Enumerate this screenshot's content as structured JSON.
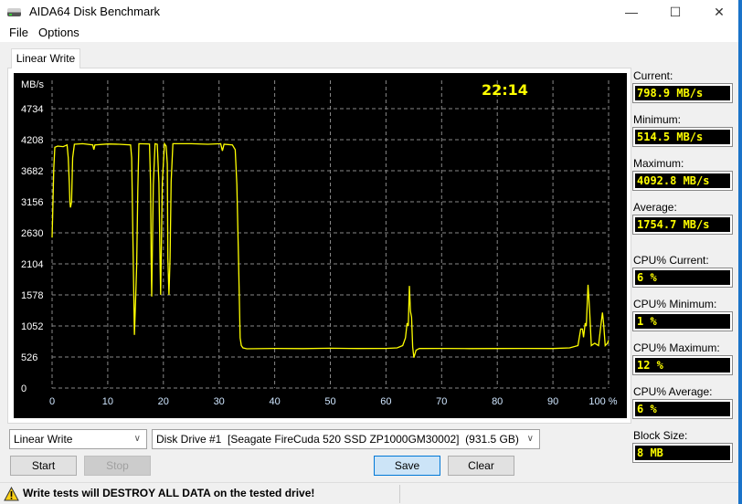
{
  "window": {
    "title": "AIDA64 Disk Benchmark",
    "minimize": "—",
    "maximize": "☐",
    "close": "✕"
  },
  "menu": [
    "File",
    "Options"
  ],
  "tab": "Linear Write",
  "stats": [
    {
      "label": "Current:",
      "value": "798.9 MB/s"
    },
    {
      "label": "Minimum:",
      "value": "514.5 MB/s"
    },
    {
      "label": "Maximum:",
      "value": "4092.8 MB/s"
    },
    {
      "label": "Average:",
      "value": "1754.7 MB/s"
    },
    {
      "label": "CPU% Current:",
      "value": "6 %"
    },
    {
      "label": "CPU% Minimum:",
      "value": "1 %"
    },
    {
      "label": "CPU% Maximum:",
      "value": "12 %"
    },
    {
      "label": "CPU% Average:",
      "value": "6 %"
    },
    {
      "label": "Block Size:",
      "value": "8 MB"
    }
  ],
  "controls": {
    "test_select": "Linear Write",
    "drive_select": "Disk Drive #1  [Seagate FireCuda 520 SSD ZP1000GM30002]  (931.5 GB)",
    "start": "Start",
    "stop": "Stop",
    "save": "Save",
    "clear": "Clear"
  },
  "status": {
    "warning": "Write tests will DESTROY ALL DATA on the tested drive!",
    "icon": "warning-icon"
  },
  "chart_data": {
    "type": "line",
    "elapsed": "22:14",
    "ylabel": "MB/s",
    "yticks": [
      0,
      526,
      1052,
      1578,
      2104,
      2630,
      3156,
      3682,
      4208,
      4734
    ],
    "xticks": [
      "0",
      "10",
      "20",
      "30",
      "40",
      "50",
      "60",
      "70",
      "80",
      "90",
      "100 %"
    ],
    "xlim": [
      0,
      100
    ],
    "ylim": [
      0,
      4734
    ],
    "grid": true,
    "line_color": "#ffff00",
    "points": [
      [
        0,
        2550
      ],
      [
        0.1,
        2900
      ],
      [
        0.3,
        3700
      ],
      [
        0.5,
        4080
      ],
      [
        1,
        4100
      ],
      [
        2,
        4090
      ],
      [
        2.7,
        4120
      ],
      [
        2.9,
        3900
      ],
      [
        3.1,
        3450
      ],
      [
        3.2,
        3150
      ],
      [
        3.3,
        3060
      ],
      [
        3.5,
        3150
      ],
      [
        3.7,
        3900
      ],
      [
        4,
        4130
      ],
      [
        5.5,
        4140
      ],
      [
        7.3,
        4120
      ],
      [
        7.5,
        4040
      ],
      [
        7.7,
        4120
      ],
      [
        10,
        4135
      ],
      [
        12,
        4130
      ],
      [
        14.1,
        4120
      ],
      [
        14.3,
        3900
      ],
      [
        14.6,
        2100
      ],
      [
        14.8,
        900
      ],
      [
        15,
        1450
      ],
      [
        15.2,
        2100
      ],
      [
        15.4,
        3350
      ],
      [
        15.6,
        4140
      ],
      [
        17.5,
        4135
      ],
      [
        17.7,
        3450
      ],
      [
        17.8,
        2200
      ],
      [
        17.9,
        1550
      ],
      [
        18,
        2200
      ],
      [
        18.2,
        3450
      ],
      [
        18.5,
        4140
      ],
      [
        18.9,
        4130
      ],
      [
        19.2,
        3480
      ],
      [
        19.4,
        2200
      ],
      [
        19.5,
        1580
      ],
      [
        19.6,
        2200
      ],
      [
        19.8,
        3480
      ],
      [
        20.2,
        4140
      ],
      [
        20.5,
        4100
      ],
      [
        20.7,
        3800
      ],
      [
        20.8,
        2200
      ],
      [
        21,
        1580
      ],
      [
        21.2,
        2200
      ],
      [
        21.4,
        3500
      ],
      [
        21.7,
        4140
      ],
      [
        25,
        4140
      ],
      [
        28,
        4130
      ],
      [
        30.3,
        4140
      ],
      [
        30.6,
        4020
      ],
      [
        30.9,
        4130
      ],
      [
        32.4,
        4120
      ],
      [
        32.9,
        4040
      ],
      [
        33.2,
        3450
      ],
      [
        33.5,
        2200
      ],
      [
        33.8,
        850
      ],
      [
        34,
        720
      ],
      [
        34.3,
        680
      ],
      [
        35,
        665
      ],
      [
        40,
        672
      ],
      [
        45,
        668
      ],
      [
        50,
        675
      ],
      [
        55,
        670
      ],
      [
        60,
        672
      ],
      [
        62,
        680
      ],
      [
        63,
        720
      ],
      [
        63.5,
        850
      ],
      [
        63.8,
        1100
      ],
      [
        64,
        1050
      ],
      [
        64.2,
        1730
      ],
      [
        64.4,
        1300
      ],
      [
        64.6,
        1200
      ],
      [
        64.8,
        700
      ],
      [
        65,
        515
      ],
      [
        65.4,
        640
      ],
      [
        66,
        670
      ],
      [
        70,
        672
      ],
      [
        75,
        668
      ],
      [
        80,
        670
      ],
      [
        85,
        672
      ],
      [
        90,
        670
      ],
      [
        93,
        680
      ],
      [
        94.5,
        720
      ],
      [
        95,
        1000
      ],
      [
        95.3,
        1000
      ],
      [
        95.5,
        860
      ],
      [
        95.8,
        1100
      ],
      [
        96,
        1050
      ],
      [
        96.3,
        1750
      ],
      [
        96.6,
        1300
      ],
      [
        96.9,
        720
      ],
      [
        97.5,
        760
      ],
      [
        98.2,
        720
      ],
      [
        98.6,
        1050
      ],
      [
        98.9,
        1280
      ],
      [
        99.1,
        1100
      ],
      [
        99.4,
        720
      ],
      [
        99.8,
        760
      ],
      [
        100,
        810
      ]
    ]
  }
}
